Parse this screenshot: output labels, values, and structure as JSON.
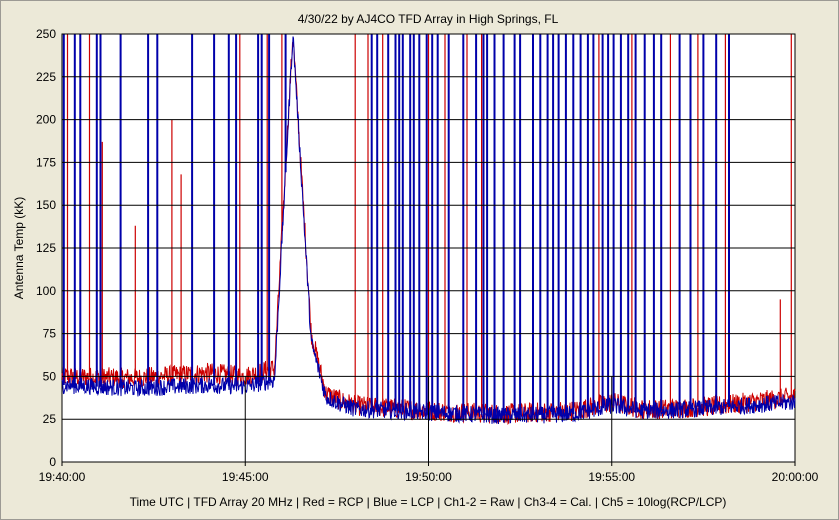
{
  "chart_data": {
    "type": "line",
    "title": "4/30/22  by  AJ4CO TFD Array  in  High Springs, FL",
    "ylabel": "Antenna Temp  (kK)",
    "xlabel": "Time UTC  |  TFD Array 20 MHz  |  Red = RCP  |  Blue = LCP  |  Ch1-2 = Raw  |  Ch3-4 = Cal.  |  Ch5 = 10log(RCP/LCP)",
    "ylim": [
      0,
      250
    ],
    "y_ticks": [
      "0",
      "25",
      "50",
      "75",
      "100",
      "125",
      "150",
      "175",
      "200",
      "225",
      "250"
    ],
    "x_ticks": [
      "19:40:00",
      "19:45:00",
      "19:50:00",
      "19:55:00",
      "20:00:00"
    ],
    "x_range_minutes": [
      0,
      20
    ],
    "colors": {
      "rcp": "#cc0000",
      "lcp": "#0000aa",
      "background": "#ffffff",
      "grid": "#000000"
    },
    "series": [
      {
        "name": "Red = RCP",
        "baseline_x_min": [
          0,
          2,
          4,
          5,
          5.8,
          6.3,
          6.8,
          7.2,
          7.6,
          8,
          10,
          12,
          14,
          15,
          15.8,
          16.5,
          18,
          20
        ],
        "baseline_y": [
          50,
          49,
          52,
          50,
          55,
          250,
          75,
          40,
          36,
          33,
          30,
          28,
          30,
          35,
          31,
          31,
          33,
          38
        ],
        "spikes_x_min": [
          0.15,
          0.75,
          1.1,
          2.0,
          3.0,
          3.25,
          4.85,
          5.6,
          6.0,
          8.0,
          8.35,
          8.75,
          10.0,
          10.45,
          11.05,
          11.45,
          14.65,
          15.55,
          16.6,
          17.35,
          18.1,
          19.6,
          19.9
        ],
        "spikes_y": [
          250,
          250,
          187,
          138,
          200,
          168,
          250,
          250,
          250,
          250,
          250,
          250,
          250,
          250,
          250,
          250,
          250,
          250,
          250,
          250,
          250,
          95,
          250
        ]
      },
      {
        "name": "Blue = LCP",
        "baseline_x_min": [
          0,
          2,
          4,
          5,
          5.8,
          6.3,
          6.8,
          7.2,
          7.6,
          8,
          10,
          12,
          14,
          15,
          15.8,
          16.5,
          18,
          20
        ],
        "baseline_y": [
          45,
          43,
          45,
          44,
          48,
          250,
          70,
          38,
          34,
          31,
          29,
          27,
          28,
          33,
          30,
          30,
          32,
          35
        ],
        "spikes_x_min": [
          0.05,
          0.35,
          0.5,
          0.95,
          1.05,
          1.6,
          2.35,
          2.6,
          3.55,
          4.15,
          4.55,
          4.75,
          5.35,
          5.45,
          5.65,
          6.1,
          8.45,
          8.6,
          8.9,
          9.1,
          9.2,
          9.3,
          9.5,
          9.6,
          9.75,
          9.95,
          10.1,
          10.25,
          10.55,
          10.95,
          11.3,
          11.5,
          11.6,
          11.8,
          12.05,
          12.35,
          12.5,
          12.85,
          13.05,
          13.25,
          13.4,
          13.55,
          13.75,
          13.95,
          14.15,
          14.35,
          14.5,
          14.75,
          14.9,
          15.05,
          15.25,
          15.45,
          15.65,
          15.9,
          16.15,
          16.35,
          16.85,
          17.15,
          17.5,
          17.85,
          18.2
        ],
        "spikes_y": [
          250,
          250,
          250,
          250,
          250,
          250,
          250,
          250,
          250,
          250,
          250,
          250,
          250,
          250,
          250,
          250,
          250,
          250,
          250,
          250,
          250,
          250,
          250,
          250,
          250,
          250,
          250,
          250,
          250,
          250,
          250,
          250,
          250,
          250,
          250,
          250,
          250,
          250,
          250,
          250,
          250,
          250,
          250,
          250,
          250,
          250,
          250,
          250,
          250,
          250,
          250,
          250,
          250,
          250,
          250,
          250,
          250,
          250,
          250,
          250,
          250
        ]
      }
    ]
  }
}
